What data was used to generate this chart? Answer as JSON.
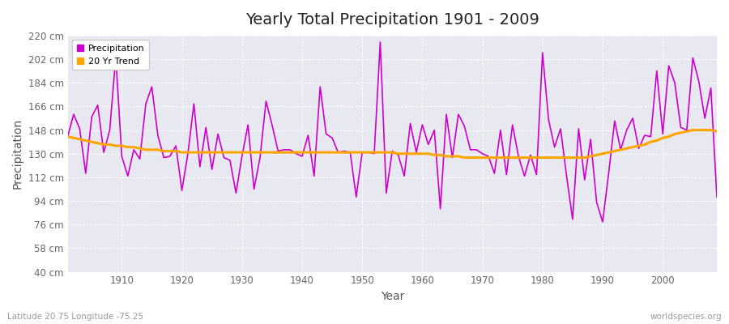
{
  "title": "Yearly Total Precipitation 1901 - 2009",
  "xlabel": "Year",
  "ylabel": "Precipitation",
  "footnote_left": "Latitude 20.75 Longitude -75.25",
  "footnote_right": "worldspecies.org",
  "line_color": "#cc00cc",
  "trend_color": "#FFA500",
  "bg_color": "#ffffff",
  "plot_bg_color": "#e8e8f0",
  "ylim": [
    40,
    220
  ],
  "yticks": [
    40,
    58,
    76,
    94,
    112,
    130,
    148,
    166,
    184,
    202,
    220
  ],
  "xlim": [
    1901,
    2009
  ],
  "xtick_positions": [
    1910,
    1920,
    1930,
    1940,
    1950,
    1960,
    1970,
    1980,
    1990,
    2000
  ],
  "years": [
    1901,
    1902,
    1903,
    1904,
    1905,
    1906,
    1907,
    1908,
    1909,
    1910,
    1911,
    1912,
    1913,
    1914,
    1915,
    1916,
    1917,
    1918,
    1919,
    1920,
    1921,
    1922,
    1923,
    1924,
    1925,
    1926,
    1927,
    1928,
    1929,
    1930,
    1931,
    1932,
    1933,
    1934,
    1935,
    1936,
    1937,
    1938,
    1939,
    1940,
    1941,
    1942,
    1943,
    1944,
    1945,
    1946,
    1947,
    1948,
    1949,
    1950,
    1951,
    1952,
    1953,
    1954,
    1955,
    1956,
    1957,
    1958,
    1959,
    1960,
    1961,
    1962,
    1963,
    1964,
    1965,
    1966,
    1967,
    1968,
    1969,
    1970,
    1971,
    1972,
    1973,
    1974,
    1975,
    1976,
    1977,
    1978,
    1979,
    1980,
    1981,
    1982,
    1983,
    1984,
    1985,
    1986,
    1987,
    1988,
    1989,
    1990,
    1991,
    1992,
    1993,
    1994,
    1995,
    1996,
    1997,
    1998,
    1999,
    2000,
    2001,
    2002,
    2003,
    2004,
    2005,
    2006,
    2007,
    2008,
    2009
  ],
  "precip": [
    143,
    160,
    149,
    115,
    158,
    167,
    131,
    148,
    204,
    128,
    113,
    133,
    126,
    168,
    181,
    144,
    127,
    128,
    136,
    102,
    130,
    168,
    120,
    150,
    118,
    145,
    127,
    125,
    100,
    128,
    152,
    103,
    127,
    170,
    152,
    132,
    133,
    133,
    130,
    128,
    144,
    113,
    181,
    145,
    142,
    131,
    132,
    131,
    97,
    131,
    131,
    130,
    215,
    100,
    132,
    129,
    113,
    153,
    131,
    152,
    137,
    148,
    88,
    160,
    127,
    160,
    151,
    133,
    133,
    130,
    128,
    115,
    148,
    114,
    152,
    128,
    113,
    129,
    114,
    207,
    156,
    135,
    149,
    113,
    80,
    149,
    110,
    141,
    93,
    78,
    115,
    155,
    133,
    148,
    157,
    134,
    144,
    143,
    193,
    145,
    197,
    184,
    150,
    148,
    203,
    185,
    157,
    180,
    97
  ],
  "trend": [
    143,
    142,
    141,
    140,
    139,
    138,
    137,
    137,
    136,
    136,
    135,
    135,
    134,
    133,
    133,
    133,
    132,
    132,
    132,
    131,
    131,
    131,
    131,
    131,
    131,
    131,
    131,
    131,
    131,
    131,
    131,
    131,
    131,
    131,
    131,
    131,
    131,
    131,
    131,
    131,
    131,
    131,
    131,
    131,
    131,
    131,
    131,
    131,
    131,
    131,
    131,
    131,
    131,
    131,
    131,
    130,
    130,
    130,
    130,
    130,
    130,
    129,
    129,
    128,
    128,
    128,
    127,
    127,
    127,
    127,
    127,
    127,
    127,
    127,
    127,
    127,
    127,
    127,
    127,
    127,
    127,
    127,
    127,
    127,
    127,
    127,
    127,
    128,
    129,
    130,
    131,
    132,
    133,
    134,
    135,
    136,
    137,
    139,
    140,
    142,
    143,
    145,
    146,
    147,
    148,
    148,
    148,
    148,
    147
  ]
}
